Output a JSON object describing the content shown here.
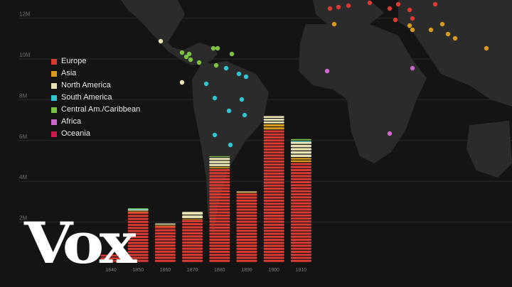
{
  "brand": {
    "logo_text": "Vox"
  },
  "legend": [
    {
      "name": "Europe",
      "color": "#d93a32"
    },
    {
      "name": "Asia",
      "color": "#d89a1a"
    },
    {
      "name": "North America",
      "color": "#e9e3b4"
    },
    {
      "name": "South America",
      "color": "#2fc4cf"
    },
    {
      "name": "Central Am./Caribbean",
      "color": "#7cc242"
    },
    {
      "name": "Africa",
      "color": "#cc66cc"
    },
    {
      "name": "Oceania",
      "color": "#cc1a4a"
    }
  ],
  "chart_data": {
    "type": "bar",
    "categories": [
      "1840",
      "1850",
      "1860",
      "1870",
      "1880",
      "1890",
      "1900",
      "1910"
    ],
    "y_ticks": [
      "2M",
      "4M",
      "6M",
      "8M",
      "10M",
      "12M"
    ],
    "ylim": [
      0,
      12.5
    ],
    "series": [
      {
        "name": "Europe",
        "values": [
          0.4,
          2.5,
          1.8,
          2.1,
          4.6,
          3.4,
          6.5,
          4.9
        ]
      },
      {
        "name": "Asia",
        "values": [
          0,
          0.02,
          0.03,
          0.05,
          0.1,
          0.07,
          0.3,
          0.25
        ]
      },
      {
        "name": "North America",
        "values": [
          0,
          0.1,
          0.1,
          0.35,
          0.45,
          0.03,
          0.4,
          0.8
        ]
      },
      {
        "name": "South America",
        "values": [
          0,
          0.03,
          0,
          0,
          0,
          0,
          0,
          0.02
        ]
      },
      {
        "name": "Central Am./Caribbean",
        "values": [
          0,
          0.03,
          0,
          0,
          0.08,
          0,
          0,
          0.1
        ]
      },
      {
        "name": "Africa",
        "values": [
          0,
          0,
          0,
          0,
          0,
          0,
          0,
          0
        ]
      },
      {
        "name": "Oceania",
        "values": [
          0,
          0,
          0,
          0,
          0,
          0,
          0,
          0
        ]
      }
    ],
    "grid": true
  }
}
